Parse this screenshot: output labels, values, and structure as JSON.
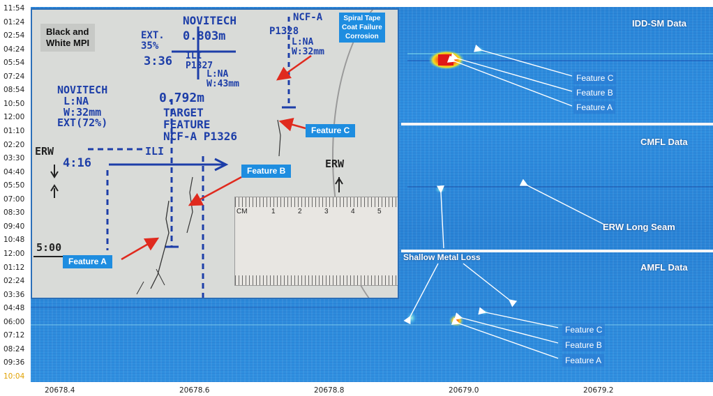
{
  "y_axis_ticks": [
    "11:54",
    "01:24",
    "02:54",
    "04:24",
    "05:54",
    "07:24",
    "08:54",
    "10:50",
    "12:00",
    "01:10",
    "02:20",
    "03:30",
    "04:40",
    "05:50",
    "07:00",
    "08:30",
    "09:40",
    "10:48",
    "12:00",
    "01:12",
    "02:24",
    "03:36",
    "04:48",
    "06:00",
    "07:12",
    "08:24",
    "09:36",
    "10:04"
  ],
  "y_axis_highlight": "10:04",
  "x_axis_ticks": [
    "20678.4",
    "20678.6",
    "20678.8",
    "20679.0",
    "20679.2"
  ],
  "sections": {
    "idd": "IDD-SM Data",
    "cmfl": "CMFL Data",
    "amfl": "AMFL Data"
  },
  "idd_features": [
    "Feature C",
    "Feature B",
    "Feature A"
  ],
  "amfl_features": [
    "Feature C",
    "Feature B",
    "Feature A"
  ],
  "erw_long_seam": "ERW Long Seam",
  "shallow_metal_loss": "Shallow Metal Loss",
  "photo": {
    "mpi_tag": "Black and\nWhite MPI",
    "spiral_tape": "Spiral Tape\nCoat Failure\nCorrosion",
    "feature_a": "Feature A",
    "feature_b": "Feature B",
    "feature_c": "Feature C",
    "hand_novitech_top": "NOVITECH",
    "hand_ext35": "EXT.\n35%",
    "hand_0803": "0.803m",
    "hand_ncf_a": "NCF-A",
    "hand_p1328": "P1328",
    "hand_lna_w32": "L:NA\nW:32mm",
    "hand_336": "3:36",
    "hand_ili_p1327": "ILI\nP1327",
    "hand_lna_w43": "L:NA\nW:43mm",
    "hand_novitech_left": "NOVITECH\n L:NA\n W:32mm\nEXT(72%)",
    "hand_0792": "0.792m",
    "hand_target": "TARGET\nFEATURE\nNCF-A P1326",
    "hand_ili": "ILI",
    "hand_416": "4:16",
    "hand_erw_left": "ERW",
    "hand_erw_right": "ERW",
    "hand_500": "5:00",
    "ruler_cm": "CM"
  },
  "colors": {
    "heat_bg": "#2f8fe0",
    "tag_blue": "#1e8de0",
    "arrow_red": "#e02a1e",
    "arrow_white": "#ffffff",
    "hotspot": "#ff3a1a"
  }
}
